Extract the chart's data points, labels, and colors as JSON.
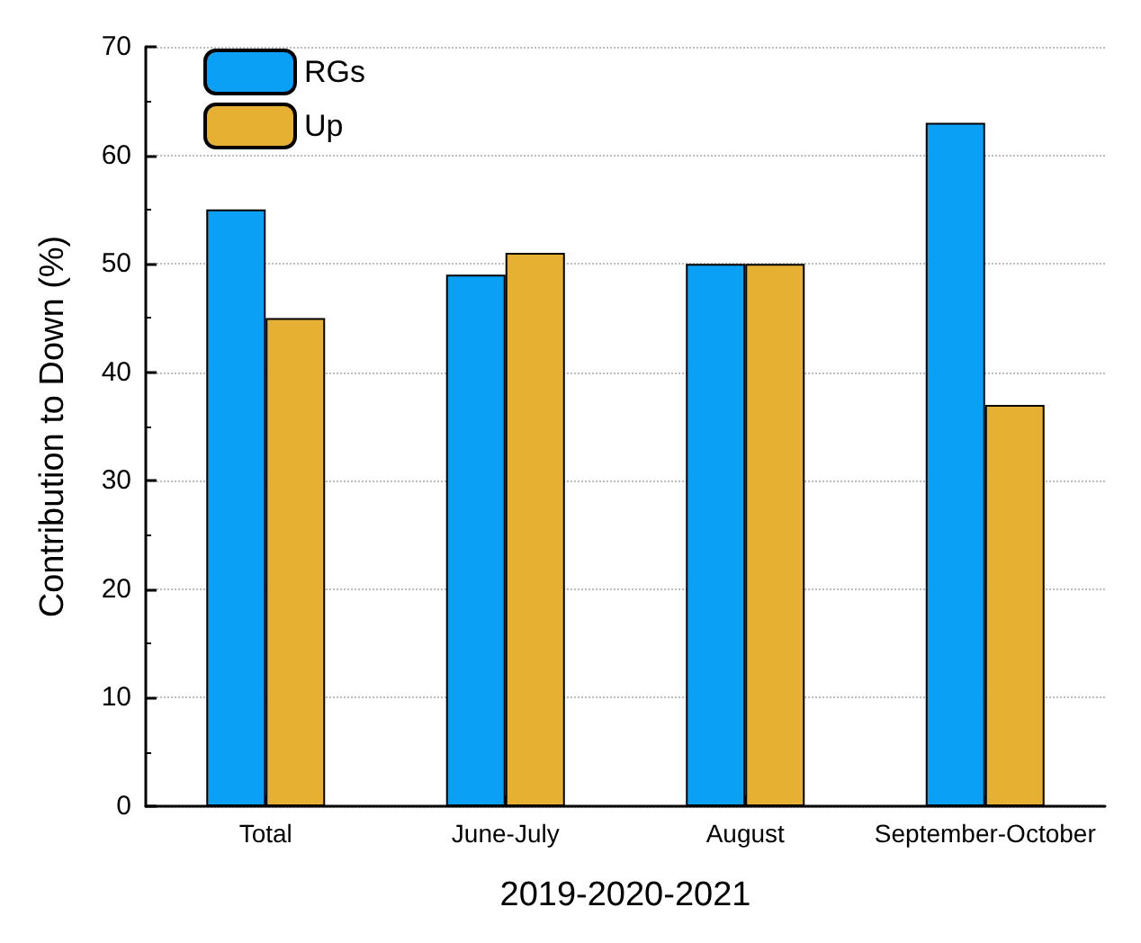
{
  "chart_data": {
    "type": "bar",
    "xlabel": "2019-2020-2021",
    "ylabel": "Contribution to Down (%)",
    "categories": [
      "Total",
      "June-July",
      "August",
      "September-October"
    ],
    "series": [
      {
        "name": "RGs",
        "color": "#0aa0f5",
        "values": [
          55,
          49,
          50,
          63
        ]
      },
      {
        "name": "Up",
        "color": "#e6b032",
        "values": [
          45,
          51,
          50,
          37
        ]
      }
    ],
    "ylim": [
      0,
      70
    ],
    "yticks": [
      0,
      10,
      20,
      30,
      40,
      50,
      60,
      70
    ],
    "grid": "y",
    "legend": "top left"
  }
}
